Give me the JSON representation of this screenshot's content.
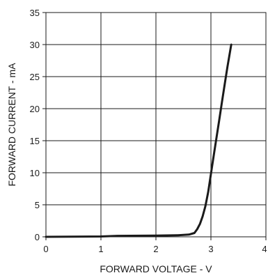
{
  "chart_data": {
    "type": "line",
    "title": "",
    "xlabel": "FORWARD VOLTAGE - V",
    "ylabel": "FORWARD CURRENT - mA",
    "xlim": [
      0,
      4
    ],
    "ylim": [
      0,
      35
    ],
    "x_ticks": [
      0,
      1,
      2,
      3,
      4
    ],
    "y_ticks": [
      0,
      5,
      10,
      15,
      20,
      25,
      30,
      35
    ],
    "grid": true,
    "legend": "none",
    "series": [
      {
        "color": "#1a1a1a",
        "x": [
          0.0,
          1.0,
          1.3,
          2.0,
          2.4,
          2.6,
          2.7,
          2.75,
          2.8,
          2.85,
          2.9,
          2.95,
          3.0,
          3.05,
          3.1,
          3.15,
          3.2,
          3.25,
          3.3,
          3.37
        ],
        "y": [
          0.0,
          0.05,
          0.15,
          0.2,
          0.25,
          0.35,
          0.6,
          1.2,
          2.0,
          3.2,
          4.8,
          7.0,
          9.8,
          12.6,
          15.4,
          18.2,
          21.0,
          23.8,
          26.5,
          30.0
        ]
      }
    ]
  }
}
